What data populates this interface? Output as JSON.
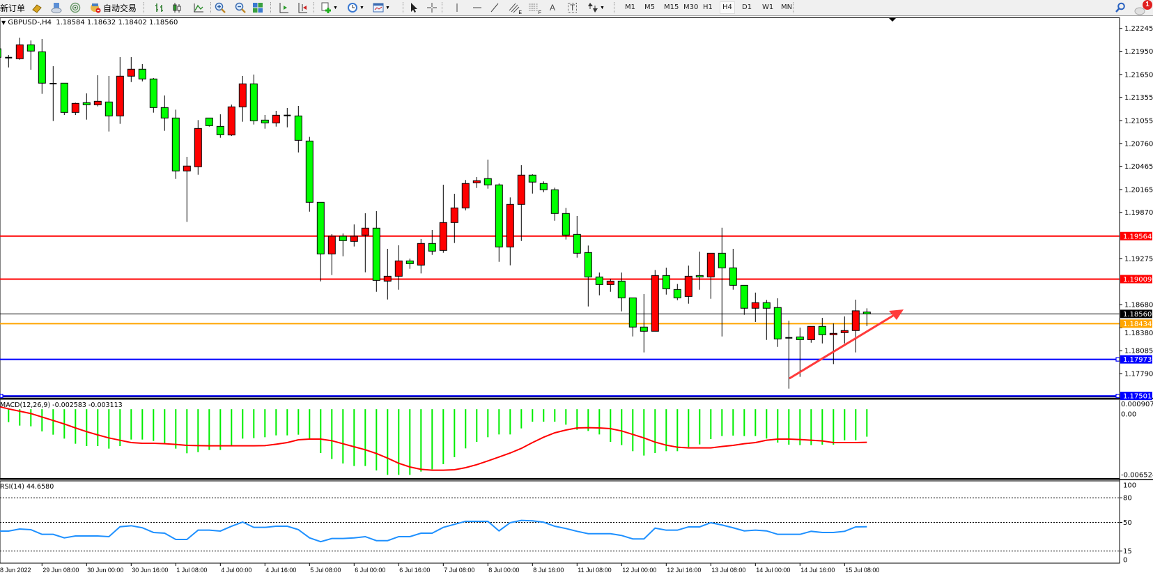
{
  "toolbar": {
    "new_order": "新订单",
    "auto_trading": "自动交易",
    "text_glyph": "A",
    "label_glyph": "T",
    "fibo_sub": "E",
    "channel_sub": "F",
    "timeframes": [
      "M1",
      "M5",
      "M15",
      "M30",
      "H1",
      "H4",
      "D1",
      "W1",
      "MN"
    ],
    "active_timeframe": "H4",
    "notification_count": "1"
  },
  "header": {
    "symbol": "GBPUSD-,H4",
    "ohlc": "1.18584 1.18632 1.18402 1.18560"
  },
  "colors": {
    "bull": "#ff0000",
    "bear": "#00ff00",
    "macd_hist": "#00ee00",
    "macd_signal": "#ff0000",
    "rsi": "#1e90ff",
    "arrow": "#ff3b3b"
  },
  "chart_data": {
    "type": "candlestick",
    "symbol": "GBPUSD-",
    "timeframe": "H4",
    "price_axis": {
      "range": [
        1.17501,
        1.22245
      ],
      "ticks": [
        "1.22245",
        "1.21950",
        "1.21650",
        "1.21355",
        "1.21055",
        "1.20760",
        "1.20465",
        "1.20165",
        "1.19870",
        "1.19275",
        "1.18680",
        "1.18380",
        "1.18085",
        "1.17790"
      ]
    },
    "levels": [
      {
        "price": 1.19564,
        "label": "1.19564",
        "color": "#ff0000"
      },
      {
        "price": 1.19009,
        "label": "1.19009",
        "color": "#ff0000"
      },
      {
        "price": 1.1856,
        "label": "1.18560",
        "color": "#000000"
      },
      {
        "price": 1.18434,
        "label": "1.18434",
        "color": "#ffa500"
      },
      {
        "price": 1.17973,
        "label": "1.17973",
        "color": "#0000ff"
      },
      {
        "price": 1.17501,
        "label": "1.17501",
        "color": "#0000ff"
      }
    ],
    "time_labels": [
      {
        "bar": 0,
        "text": "8 Jun 2022"
      },
      {
        "bar": 4,
        "text": "29 Jun 08:00"
      },
      {
        "bar": 8,
        "text": "30 Jun 00:00"
      },
      {
        "bar": 12,
        "text": "30 Jun 16:00"
      },
      {
        "bar": 16,
        "text": "1 Jul 08:00"
      },
      {
        "bar": 20,
        "text": "4 Jul 00:00"
      },
      {
        "bar": 24,
        "text": "4 Jul 16:00"
      },
      {
        "bar": 28,
        "text": "5 Jul 08:00"
      },
      {
        "bar": 32,
        "text": "6 Jul 00:00"
      },
      {
        "bar": 36,
        "text": "6 Jul 16:00"
      },
      {
        "bar": 40,
        "text": "7 Jul 08:00"
      },
      {
        "bar": 44,
        "text": "8 Jul 00:00"
      },
      {
        "bar": 48,
        "text": "8 Jul 16:00"
      },
      {
        "bar": 52,
        "text": "11 Jul 08:00"
      },
      {
        "bar": 56,
        "text": "12 Jul 00:00"
      },
      {
        "bar": 60,
        "text": "12 Jul 16:00"
      },
      {
        "bar": 64,
        "text": "13 Jul 08:00"
      },
      {
        "bar": 68,
        "text": "14 Jul 00:00"
      },
      {
        "bar": 72,
        "text": "14 Jul 16:00"
      },
      {
        "bar": 76,
        "text": "15 Jul 08:00"
      }
    ],
    "candles_ohlc": [
      [
        1.21981,
        1.22,
        1.2186,
        1.21871
      ],
      [
        1.21867,
        1.219,
        1.21741,
        1.21867
      ],
      [
        1.21853,
        1.22125,
        1.2184,
        1.22033
      ],
      [
        1.22033,
        1.22089,
        1.21711,
        1.21952
      ],
      [
        1.21943,
        1.22107,
        1.214,
        1.21538
      ],
      [
        1.21532,
        1.21757,
        1.21049,
        1.21532
      ],
      [
        1.21538,
        1.21538,
        1.21127,
        1.2116
      ],
      [
        1.2116,
        1.21286,
        1.21127,
        1.21277
      ],
      [
        1.21286,
        1.21406,
        1.21067,
        1.21259
      ],
      [
        1.21259,
        1.2164,
        1.21238,
        1.21304
      ],
      [
        1.21295,
        1.21631,
        1.20914,
        1.21115
      ],
      [
        1.21115,
        1.21874,
        1.21013,
        1.21628
      ],
      [
        1.21628,
        1.21874,
        1.21552,
        1.21718
      ],
      [
        1.21718,
        1.21784,
        1.21561,
        1.21592
      ],
      [
        1.21592,
        1.21604,
        1.21157,
        1.21223
      ],
      [
        1.21223,
        1.21379,
        1.20923,
        1.21088
      ],
      [
        1.21088,
        1.21196,
        1.20302,
        1.20405
      ],
      [
        1.20405,
        1.20587,
        1.19748,
        1.20468
      ],
      [
        1.20459,
        1.21061,
        1.20356,
        1.20953
      ],
      [
        1.21088,
        1.21088,
        1.20977,
        1.20989
      ],
      [
        1.2098,
        1.21136,
        1.20833,
        1.20872
      ],
      [
        1.20869,
        1.21262,
        1.20857,
        1.21232
      ],
      [
        1.21232,
        1.21631,
        1.2104,
        1.21529
      ],
      [
        1.21529,
        1.21649,
        1.21004,
        1.21052
      ],
      [
        1.21061,
        1.21127,
        1.2095,
        1.21025
      ],
      [
        1.21025,
        1.21181,
        1.20977,
        1.21124
      ],
      [
        1.21121,
        1.21217,
        1.20968,
        1.21121
      ],
      [
        1.21115,
        1.21244,
        1.20644,
        1.208
      ],
      [
        1.20791,
        1.20845,
        1.19879,
        1.2
      ],
      [
        1.2,
        1.2,
        1.1898,
        1.19334
      ],
      [
        1.19334,
        1.19589,
        1.19061,
        1.19562
      ],
      [
        1.19562,
        1.19598,
        1.19304,
        1.19505
      ],
      [
        1.19496,
        1.19715,
        1.1943,
        1.19562
      ],
      [
        1.19577,
        1.19859,
        1.19097,
        1.19667
      ],
      [
        1.19667,
        1.19886,
        1.18845,
        1.18992
      ],
      [
        1.18983,
        1.194,
        1.18746,
        1.19046
      ],
      [
        1.19046,
        1.19445,
        1.18872,
        1.19244
      ],
      [
        1.19244,
        1.19274,
        1.19142,
        1.19208
      ],
      [
        1.1919,
        1.19526,
        1.19082,
        1.19469
      ],
      [
        1.19469,
        1.19643,
        1.19322,
        1.1937
      ],
      [
        1.19379,
        1.20227,
        1.19349,
        1.19739
      ],
      [
        1.19739,
        1.2011,
        1.19475,
        1.19928
      ],
      [
        1.19928,
        1.20288,
        1.19897,
        1.20243
      ],
      [
        1.20252,
        1.20326,
        1.20185,
        1.20279
      ],
      [
        1.20306,
        1.20551,
        1.20176,
        1.20225
      ],
      [
        1.20225,
        1.20243,
        1.19232,
        1.19424
      ],
      [
        1.19424,
        1.20063,
        1.19187,
        1.19973
      ],
      [
        1.19973,
        1.20479,
        1.19501,
        1.20351
      ],
      [
        1.20351,
        1.20362,
        1.20113,
        1.20261
      ],
      [
        1.20243,
        1.2027,
        1.20131,
        1.20162
      ],
      [
        1.20162,
        1.20189,
        1.19762,
        1.19856
      ],
      [
        1.19856,
        1.19928,
        1.1952,
        1.19577
      ],
      [
        1.19586,
        1.19823,
        1.19286,
        1.19343
      ],
      [
        1.19352,
        1.19442,
        1.18656,
        1.19037
      ],
      [
        1.19037,
        1.19094,
        1.188,
        1.18938
      ],
      [
        1.18938,
        1.19013,
        1.18845,
        1.18983
      ],
      [
        1.18983,
        1.19094,
        1.18593,
        1.18767
      ],
      [
        1.18767,
        1.18767,
        1.18269,
        1.1839
      ],
      [
        1.1839,
        1.18815,
        1.18063,
        1.18336
      ],
      [
        1.18336,
        1.19127,
        1.18336,
        1.19055
      ],
      [
        1.19055,
        1.19157,
        1.18809,
        1.18884
      ],
      [
        1.18875,
        1.18947,
        1.18737,
        1.18767
      ],
      [
        1.18785,
        1.19184,
        1.18692,
        1.19046
      ],
      [
        1.19055,
        1.19364,
        1.18872,
        1.19037
      ],
      [
        1.19037,
        1.19343,
        1.18755,
        1.19343
      ],
      [
        1.19343,
        1.19672,
        1.18269,
        1.19154
      ],
      [
        1.19154,
        1.194,
        1.18872,
        1.18929
      ],
      [
        1.18929,
        1.18929,
        1.18548,
        1.18633
      ],
      [
        1.18633,
        1.18835,
        1.18456,
        1.18705
      ],
      [
        1.18705,
        1.18741,
        1.18224,
        1.18633
      ],
      [
        1.18642,
        1.18761,
        1.18134,
        1.18237
      ],
      [
        1.18251,
        1.18473,
        1.17595,
        1.18251
      ],
      [
        1.18263,
        1.18383,
        1.17748,
        1.18227
      ],
      [
        1.18227,
        1.18399,
        1.18188,
        1.18399
      ],
      [
        1.18399,
        1.18509,
        1.18179,
        1.18291
      ],
      [
        1.18291,
        1.18437,
        1.17912,
        1.18309
      ],
      [
        1.18318,
        1.18527,
        1.18179,
        1.18345
      ],
      [
        1.18345,
        1.18744,
        1.18063,
        1.186
      ],
      [
        1.18584,
        1.18632,
        1.18402,
        1.1856
      ]
    ],
    "macd": {
      "label": "MACD(12,26,9) -0.002583 -0.003113",
      "range": [
        -0.006524,
        0.000907
      ],
      "ticks": [
        "0.000907",
        "0.00",
        "-0.006524"
      ],
      "histogram": [
        null,
        -0.001214,
        -0.001542,
        -0.001607,
        -0.002088,
        -0.002394,
        -0.002765,
        -0.003245,
        -0.003464,
        -0.003464,
        -0.003704,
        -0.003464,
        -0.002852,
        -0.002852,
        -0.002983,
        -0.003245,
        -0.003704,
        -0.004141,
        -0.004032,
        -0.003835,
        -0.003835,
        -0.00342,
        -0.002765,
        -0.002721,
        -0.002634,
        -0.002459,
        -0.002459,
        -0.002394,
        -0.002809,
        -0.004119,
        -0.004687,
        -0.005102,
        -0.005342,
        -0.005342,
        -0.005757,
        -0.006172,
        -0.006172,
        -0.006172,
        -0.005866,
        -0.005648,
        -0.005167,
        -0.004512,
        -0.003682,
        -0.003071,
        -0.002634,
        -0.002372,
        -0.002372,
        -0.001804,
        -0.001171,
        -0.001171,
        -0.001171,
        -0.001455,
        -0.001935,
        -0.002044,
        -0.002372,
        -0.003071,
        -0.003377,
        -0.003945,
        -0.00436,
        -0.004119,
        -0.003945,
        -0.003945,
        -0.003552,
        -0.003311,
        -0.002809,
        -0.002525,
        -0.002481,
        -0.002525,
        -0.002525,
        -0.002765,
        -0.003137,
        -0.003333,
        -0.003377,
        -0.003377,
        -0.003333,
        -0.003333,
        -0.002918,
        -0.002918,
        -0.002583
      ],
      "signal": [
        null,
        3.1e-05,
        -0.000188,
        -0.000406,
        -0.000734,
        -0.001061,
        -0.001389,
        -0.00176,
        -0.00211,
        -0.002415,
        -0.002699,
        -0.002918,
        -0.003136,
        -0.003202,
        -0.003202,
        -0.003245,
        -0.003311,
        -0.003398,
        -0.00342,
        -0.003442,
        -0.003442,
        -0.003442,
        -0.003442,
        -0.003442,
        -0.00342,
        -0.003289,
        -0.003136,
        -0.002874,
        -0.002809,
        -0.002809,
        -0.002961,
        -0.003245,
        -0.003529,
        -0.003813,
        -0.004162,
        -0.004599,
        -0.00508,
        -0.005429,
        -0.005648,
        -0.005735,
        -0.005735,
        -0.005691,
        -0.005495,
        -0.005211,
        -0.004862,
        -0.00449,
        -0.004119,
        -0.003682,
        -0.003136,
        -0.002634,
        -0.002219,
        -0.001957,
        -0.00176,
        -0.001738,
        -0.00176,
        -0.001826,
        -0.002044,
        -0.002372,
        -0.002699,
        -0.003092,
        -0.003377,
        -0.003573,
        -0.003639,
        -0.003639,
        -0.003639,
        -0.003508,
        -0.003398,
        -0.003245,
        -0.003136,
        -0.002918,
        -0.002809,
        -0.002809,
        -0.002852,
        -0.002918,
        -0.002983,
        -0.003136,
        -0.003136,
        -0.003136,
        -0.003113
      ]
    },
    "rsi": {
      "label": "RSI(14) 44.6580",
      "range": [
        0,
        100
      ],
      "ticks": [
        "100",
        "80",
        "50",
        "15",
        "0"
      ],
      "levels": [
        80,
        50,
        15
      ],
      "values": [
        null,
        39.4,
        41.9,
        41.1,
        35.4,
        35.4,
        31.1,
        33.4,
        33.4,
        33.4,
        32.6,
        44.7,
        45.9,
        43.4,
        37.7,
        36.8,
        29.2,
        29.2,
        40.5,
        40.5,
        39.4,
        45.3,
        50.4,
        43.9,
        43.9,
        45.3,
        45.3,
        41.1,
        31.1,
        26.4,
        30.3,
        30.3,
        31.1,
        32.6,
        27.7,
        27.7,
        32.6,
        32.6,
        36.8,
        36.8,
        43.9,
        47.6,
        51.3,
        51.3,
        51.3,
        39.6,
        49.6,
        52.4,
        51.9,
        50.2,
        45.3,
        42.5,
        39.1,
        36.2,
        36.2,
        36.2,
        34.0,
        29.8,
        29.8,
        43.0,
        40.5,
        40.5,
        44.5,
        44.5,
        49.6,
        46.8,
        43.4,
        39.6,
        40.5,
        39.6,
        35.4,
        35.4,
        35.4,
        39.1,
        37.7,
        37.7,
        39.1,
        44.5,
        44.658
      ]
    }
  }
}
